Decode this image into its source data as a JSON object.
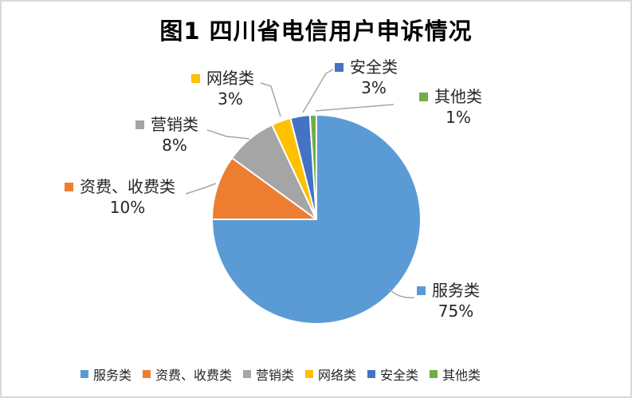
{
  "frame": {
    "background": "#FFFFFF",
    "border_color": "#D9D9D9"
  },
  "chart_data": {
    "type": "pie",
    "title": "图1 四川省电信用户申诉情况",
    "categories": [
      "服务类",
      "资费、收费类",
      "营销类",
      "网络类",
      "安全类",
      "其他类"
    ],
    "values": [
      75,
      10,
      8,
      3,
      3,
      1
    ],
    "percent_labels": [
      "75%",
      "10%",
      "8%",
      "3%",
      "3%",
      "1%"
    ],
    "colors": [
      "#5B9BD5",
      "#ED7D31",
      "#A5A5A5",
      "#FFC000",
      "#4472C4",
      "#70AD47"
    ],
    "unit": "%",
    "start_angle_deg": 0,
    "direction": "clockwise",
    "grid": false,
    "legend_position": "bottom",
    "leader_line_color": "#A6A6A6",
    "slice_border_color": "#FFFFFF"
  }
}
